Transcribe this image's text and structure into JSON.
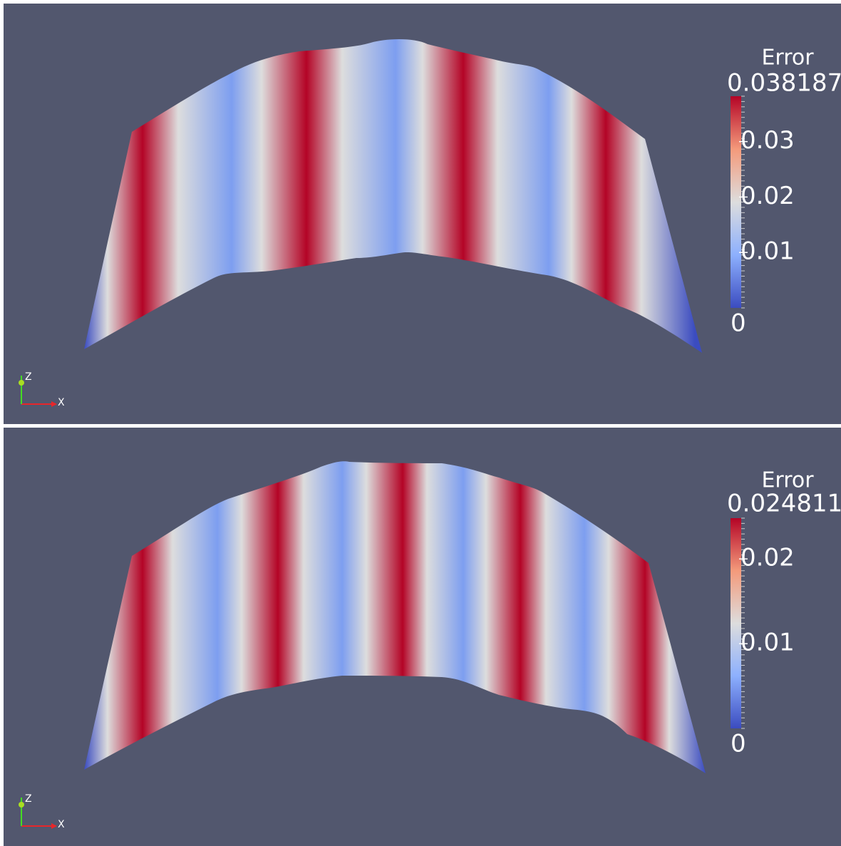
{
  "panels": [
    {
      "legend": {
        "title": "Error",
        "range": [
          0,
          0.038187
        ],
        "ticks": [
          0.03,
          0.02,
          0.01
        ]
      },
      "triad": {
        "z": "Z",
        "x": "X"
      }
    },
    {
      "legend": {
        "title": "Error",
        "range": [
          0,
          0.024811
        ],
        "ticks": [
          0.02,
          0.01
        ]
      },
      "triad": {
        "z": "Z",
        "x": "X"
      }
    }
  ]
}
